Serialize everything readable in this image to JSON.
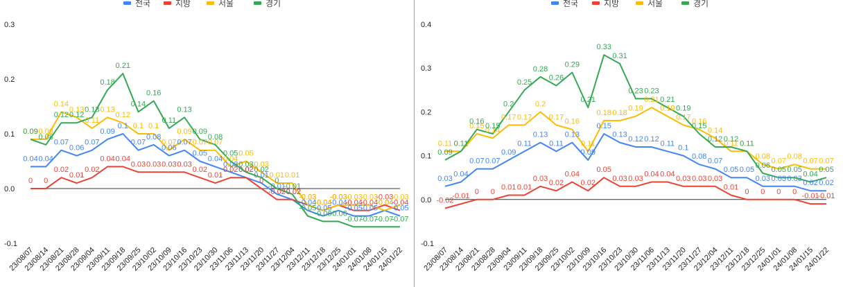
{
  "chart_data": [
    {
      "type": "line",
      "categories": [
        "23/08/07",
        "23/08/14",
        "23/08/21",
        "23/08/28",
        "23/09/04",
        "23/09/11",
        "23/09/18",
        "23/09/25",
        "23/10/02",
        "23/10/09",
        "23/10/16",
        "23/10/23",
        "23/10/30",
        "23/11/06",
        "23/11/13",
        "23/11/20",
        "23/11/27",
        "23/12/04",
        "23/12/11",
        "23/12/18",
        "23/12/25",
        "24/01/01",
        "24/01/08",
        "24/01/15",
        "24/01/22"
      ],
      "series": [
        {
          "name": "전국",
          "color": "#4285f4",
          "values": [
            0.04,
            0.04,
            0.07,
            0.06,
            0.07,
            0.09,
            0.1,
            0.07,
            0.08,
            0.06,
            0.07,
            0.05,
            0.04,
            0.03,
            0.02,
            0.01,
            -0.01,
            -0.02,
            -0.04,
            -0.05,
            -0.04,
            -0.05,
            -0.05,
            -0.04,
            -0.05
          ]
        },
        {
          "name": "지방",
          "color": "#ea4335",
          "values": [
            0,
            0,
            0.02,
            0.01,
            0.02,
            0.04,
            0.04,
            0.03,
            0.03,
            0.03,
            0.03,
            0.02,
            0.01,
            0.02,
            0.02,
            0,
            -0.02,
            -0.02,
            -0.03,
            -0.04,
            -0.03,
            -0.04,
            -0.04,
            -0.03,
            -0.04
          ]
        },
        {
          "name": "서울",
          "color": "#fbbc04",
          "values": [
            0.09,
            0.09,
            0.14,
            0.13,
            0.11,
            0.13,
            0.12,
            0.1,
            0.1,
            0.07,
            0.09,
            0.07,
            0.07,
            0.04,
            0.05,
            0.03,
            0.01,
            0.01,
            -0.03,
            -0.04,
            -0.03,
            -0.03,
            -0.03,
            -0.04,
            -0.03
          ]
        },
        {
          "name": "경기",
          "color": "#34a853",
          "values": [
            0.09,
            0.08,
            0.12,
            0.12,
            0.13,
            0.18,
            0.21,
            0.14,
            0.16,
            0.11,
            0.13,
            0.09,
            0.08,
            0.05,
            0.03,
            0.02,
            0.0,
            -0.01,
            -0.05,
            -0.06,
            -0.06,
            -0.07,
            -0.07,
            -0.07,
            -0.07
          ]
        }
      ],
      "ylim": [
        -0.1,
        0.3
      ],
      "yticks": [
        "0.3",
        "0.2",
        "0.1",
        "0.0",
        "-0.1"
      ],
      "legend": "top",
      "grid": false
    },
    {
      "type": "line",
      "categories": [
        "23/08/07",
        "23/08/14",
        "23/08/21",
        "23/08/28",
        "23/09/04",
        "23/09/11",
        "23/09/18",
        "23/09/25",
        "23/10/02",
        "23/10/09",
        "23/10/16",
        "23/10/23",
        "23/10/30",
        "23/11/06",
        "23/11/13",
        "23/11/20",
        "23/11/27",
        "23/12/04",
        "23/12/11",
        "23/12/18",
        "23/12/25",
        "24/01/01",
        "24/01/08",
        "24/01/15",
        "24/01/22"
      ],
      "series": [
        {
          "name": "전국",
          "color": "#4285f4",
          "values": [
            0.03,
            0.04,
            0.07,
            0.07,
            0.09,
            0.11,
            0.13,
            0.11,
            0.13,
            0.09,
            0.15,
            0.13,
            0.12,
            0.12,
            0.11,
            0.1,
            0.08,
            0.07,
            0.05,
            0.05,
            0.03,
            0.03,
            0.03,
            0.02,
            0.02
          ]
        },
        {
          "name": "지방",
          "color": "#ea4335",
          "values": [
            -0.02,
            -0.01,
            0,
            0,
            0.01,
            0.01,
            0.03,
            0.02,
            0.04,
            0.02,
            0.05,
            0.03,
            0.03,
            0.04,
            0.04,
            0.03,
            0.03,
            0.03,
            0.01,
            0,
            0,
            0,
            0,
            -0.01,
            -0.01
          ]
        },
        {
          "name": "서울",
          "color": "#fbbc04",
          "values": [
            0.11,
            0.11,
            0.15,
            0.14,
            0.17,
            0.17,
            0.2,
            0.17,
            0.16,
            0.11,
            0.18,
            0.18,
            0.19,
            0.21,
            0.19,
            0.17,
            0.16,
            0.14,
            0.11,
            0.11,
            0.08,
            0.07,
            0.08,
            0.07,
            0.07
          ]
        },
        {
          "name": "경기",
          "color": "#34a853",
          "values": [
            0.09,
            0.11,
            0.16,
            0.15,
            0.2,
            0.25,
            0.28,
            0.26,
            0.29,
            0.21,
            0.33,
            0.31,
            0.23,
            0.23,
            0.21,
            0.19,
            0.15,
            0.12,
            0.12,
            0.11,
            0.06,
            0.05,
            0.05,
            0.04,
            0.05
          ]
        }
      ],
      "ylim": [
        -0.1,
        0.4
      ],
      "yticks": [
        "0.4",
        "0.3",
        "0.2",
        "0.1",
        "0.0",
        "-0.1"
      ],
      "legend": "top",
      "grid": false
    }
  ]
}
